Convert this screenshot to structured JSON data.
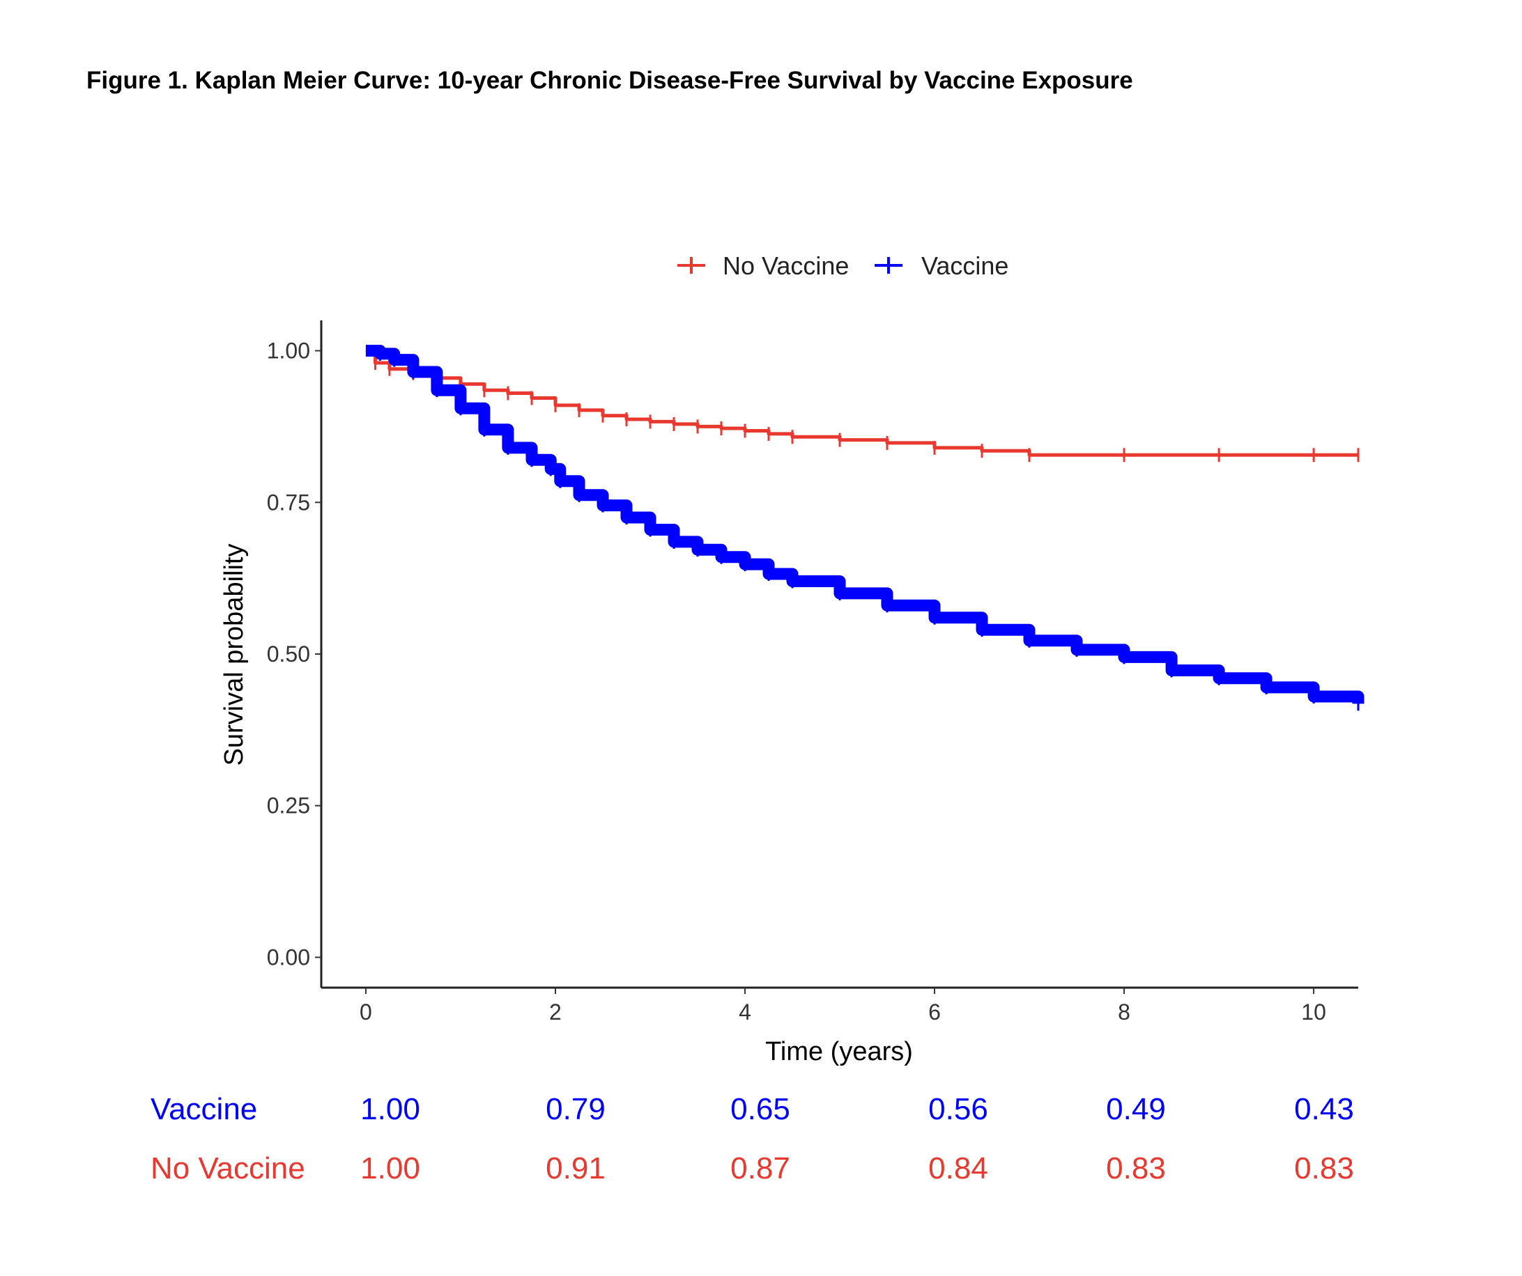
{
  "chart_data": {
    "type": "line",
    "title": "Figure 1. Kaplan Meier Curve: 10-year Chronic Disease-Free Survival by Vaccine Exposure",
    "xlabel": "Time (years)",
    "ylabel": "Survival probability",
    "xlim": [
      -0.47,
      10.47
    ],
    "ylim": [
      -0.05,
      1.05
    ],
    "x_ticks": [
      "0",
      "2",
      "4",
      "6",
      "8",
      "10"
    ],
    "y_ticks": [
      "0.00",
      "0.25",
      "0.50",
      "0.75",
      "1.00"
    ],
    "legend_position": "top",
    "grid": false,
    "series": [
      {
        "name": "No Vaccine",
        "color": "#e8382f",
        "x": [
          0,
          0.1,
          0.25,
          0.5,
          0.75,
          1.0,
          1.25,
          1.5,
          1.75,
          2.0,
          2.25,
          2.5,
          2.75,
          3.0,
          3.25,
          3.5,
          3.75,
          4.0,
          4.25,
          4.5,
          5.0,
          5.5,
          6.0,
          6.5,
          7.0,
          8.0,
          9.0,
          10.0,
          10.47
        ],
        "y": [
          1.0,
          0.98,
          0.97,
          0.963,
          0.955,
          0.945,
          0.935,
          0.93,
          0.922,
          0.91,
          0.902,
          0.893,
          0.887,
          0.883,
          0.879,
          0.875,
          0.872,
          0.868,
          0.863,
          0.858,
          0.853,
          0.848,
          0.84,
          0.835,
          0.828,
          0.828,
          0.828,
          0.828,
          0.828
        ]
      },
      {
        "name": "Vaccine",
        "color": "#0000ff",
        "x": [
          0,
          0.15,
          0.3,
          0.5,
          0.75,
          1.0,
          1.25,
          1.5,
          1.75,
          1.95,
          2.05,
          2.25,
          2.5,
          2.75,
          3.0,
          3.25,
          3.5,
          3.75,
          4.0,
          4.25,
          4.5,
          5.0,
          5.5,
          6.0,
          6.5,
          7.0,
          7.5,
          8.0,
          8.5,
          9.0,
          9.5,
          10.0,
          10.47
        ],
        "y": [
          1.0,
          0.995,
          0.985,
          0.965,
          0.935,
          0.905,
          0.87,
          0.84,
          0.82,
          0.805,
          0.785,
          0.762,
          0.745,
          0.725,
          0.705,
          0.685,
          0.672,
          0.66,
          0.648,
          0.632,
          0.62,
          0.6,
          0.58,
          0.56,
          0.54,
          0.522,
          0.507,
          0.495,
          0.473,
          0.46,
          0.445,
          0.43,
          0.418
        ]
      }
    ],
    "risk_table": {
      "rows": [
        {
          "label": "Vaccine",
          "color": "#0000ff",
          "values": [
            "1.00",
            "0.79",
            "0.65",
            "0.56",
            "0.49",
            "0.43"
          ]
        },
        {
          "label": "No Vaccine",
          "color": "#e8382f",
          "values": [
            "1.00",
            "0.91",
            "0.87",
            "0.84",
            "0.83",
            "0.83"
          ]
        }
      ]
    }
  }
}
